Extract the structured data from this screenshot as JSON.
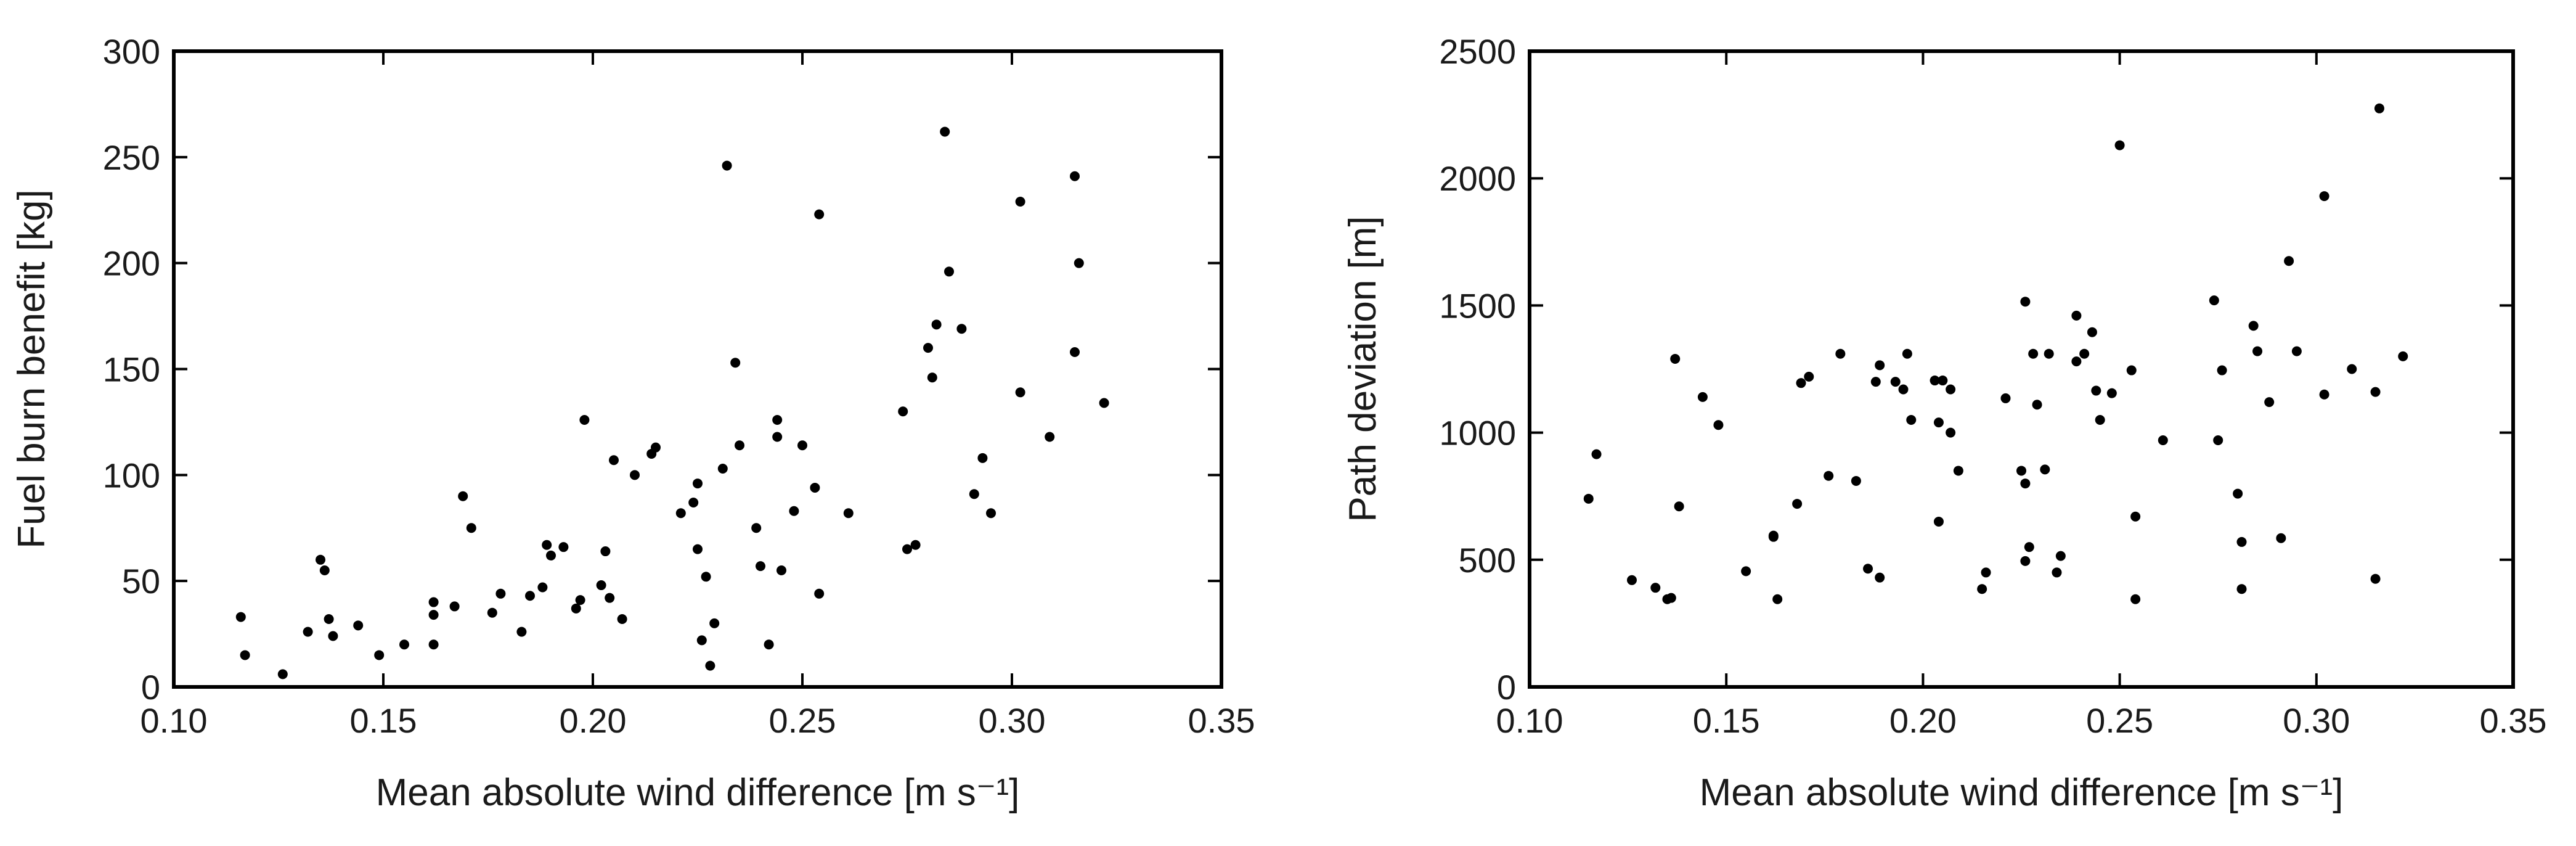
{
  "chart_data": [
    {
      "type": "scatter",
      "xlabel": "Mean absolute wind difference [m s⁻¹]",
      "ylabel": "Fuel burn benefit [kg]",
      "xlim": [
        0.1,
        0.35
      ],
      "ylim": [
        0,
        300
      ],
      "x_ticks": [
        "0.10",
        "0.15",
        "0.20",
        "0.25",
        "0.30",
        "0.35"
      ],
      "y_ticks": [
        "0",
        "50",
        "100",
        "150",
        "200",
        "250",
        "300"
      ],
      "grid": false,
      "marker_color": "#000000",
      "points": [
        [
          0.116,
          33
        ],
        [
          0.117,
          15
        ],
        [
          0.126,
          6
        ],
        [
          0.132,
          26
        ],
        [
          0.135,
          60
        ],
        [
          0.136,
          55
        ],
        [
          0.137,
          32
        ],
        [
          0.138,
          24
        ],
        [
          0.144,
          29
        ],
        [
          0.149,
          15
        ],
        [
          0.155,
          20
        ],
        [
          0.162,
          40
        ],
        [
          0.162,
          34
        ],
        [
          0.162,
          20
        ],
        [
          0.167,
          38
        ],
        [
          0.169,
          90
        ],
        [
          0.171,
          75
        ],
        [
          0.176,
          35
        ],
        [
          0.178,
          44
        ],
        [
          0.183,
          26
        ],
        [
          0.185,
          43
        ],
        [
          0.188,
          47
        ],
        [
          0.189,
          67
        ],
        [
          0.19,
          62
        ],
        [
          0.193,
          66
        ],
        [
          0.196,
          37
        ],
        [
          0.197,
          41
        ],
        [
          0.198,
          126
        ],
        [
          0.202,
          48
        ],
        [
          0.203,
          64
        ],
        [
          0.204,
          42
        ],
        [
          0.205,
          107
        ],
        [
          0.207,
          32
        ],
        [
          0.21,
          100
        ],
        [
          0.214,
          110
        ],
        [
          0.215,
          113
        ],
        [
          0.221,
          82
        ],
        [
          0.224,
          87
        ],
        [
          0.225,
          65
        ],
        [
          0.225,
          96
        ],
        [
          0.226,
          22
        ],
        [
          0.227,
          52
        ],
        [
          0.228,
          10
        ],
        [
          0.229,
          30
        ],
        [
          0.231,
          103
        ],
        [
          0.232,
          246
        ],
        [
          0.234,
          153
        ],
        [
          0.235,
          114
        ],
        [
          0.239,
          75
        ],
        [
          0.24,
          57
        ],
        [
          0.242,
          20
        ],
        [
          0.244,
          126
        ],
        [
          0.244,
          118
        ],
        [
          0.245,
          55
        ],
        [
          0.248,
          83
        ],
        [
          0.25,
          114
        ],
        [
          0.253,
          94
        ],
        [
          0.254,
          223
        ],
        [
          0.254,
          44
        ],
        [
          0.261,
          82
        ],
        [
          0.274,
          130
        ],
        [
          0.275,
          65
        ],
        [
          0.277,
          67
        ],
        [
          0.28,
          160
        ],
        [
          0.281,
          146
        ],
        [
          0.282,
          171
        ],
        [
          0.284,
          262
        ],
        [
          0.285,
          196
        ],
        [
          0.288,
          169
        ],
        [
          0.291,
          91
        ],
        [
          0.293,
          108
        ],
        [
          0.295,
          82
        ],
        [
          0.302,
          139
        ],
        [
          0.302,
          229
        ],
        [
          0.309,
          118
        ],
        [
          0.315,
          158
        ],
        [
          0.315,
          241
        ],
        [
          0.316,
          200
        ],
        [
          0.322,
          134
        ]
      ]
    },
    {
      "type": "scatter",
      "xlabel": "Mean absolute wind difference [m s⁻¹]",
      "ylabel": "Path deviation [m]",
      "xlim": [
        0.1,
        0.35
      ],
      "ylim": [
        0,
        2500
      ],
      "x_ticks": [
        "0.10",
        "0.15",
        "0.20",
        "0.25",
        "0.30",
        "0.35"
      ],
      "y_ticks": [
        "0",
        "500",
        "1000",
        "1500",
        "2000",
        "2500"
      ],
      "grid": false,
      "marker_color": "#000000",
      "points": [
        [
          0.115,
          740
        ],
        [
          0.117,
          915
        ],
        [
          0.126,
          420
        ],
        [
          0.132,
          390
        ],
        [
          0.135,
          345
        ],
        [
          0.136,
          350
        ],
        [
          0.137,
          1290
        ],
        [
          0.138,
          710
        ],
        [
          0.144,
          1140
        ],
        [
          0.148,
          1030
        ],
        [
          0.155,
          455
        ],
        [
          0.162,
          595
        ],
        [
          0.162,
          590
        ],
        [
          0.163,
          345
        ],
        [
          0.168,
          720
        ],
        [
          0.169,
          1195
        ],
        [
          0.171,
          1220
        ],
        [
          0.176,
          830
        ],
        [
          0.179,
          1310
        ],
        [
          0.183,
          810
        ],
        [
          0.186,
          465
        ],
        [
          0.188,
          1200
        ],
        [
          0.189,
          1265
        ],
        [
          0.189,
          430
        ],
        [
          0.193,
          1200
        ],
        [
          0.195,
          1170
        ],
        [
          0.196,
          1310
        ],
        [
          0.197,
          1050
        ],
        [
          0.203,
          1205
        ],
        [
          0.204,
          1040
        ],
        [
          0.205,
          1205
        ],
        [
          0.204,
          650
        ],
        [
          0.207,
          1170
        ],
        [
          0.207,
          1000
        ],
        [
          0.209,
          850
        ],
        [
          0.215,
          385
        ],
        [
          0.216,
          450
        ],
        [
          0.221,
          1135
        ],
        [
          0.225,
          850
        ],
        [
          0.226,
          1515
        ],
        [
          0.226,
          495
        ],
        [
          0.226,
          800
        ],
        [
          0.227,
          550
        ],
        [
          0.228,
          1310
        ],
        [
          0.229,
          1110
        ],
        [
          0.231,
          855
        ],
        [
          0.232,
          1310
        ],
        [
          0.234,
          450
        ],
        [
          0.235,
          515
        ],
        [
          0.239,
          1460
        ],
        [
          0.239,
          1280
        ],
        [
          0.241,
          1310
        ],
        [
          0.243,
          1395
        ],
        [
          0.244,
          1165
        ],
        [
          0.245,
          1050
        ],
        [
          0.248,
          1155
        ],
        [
          0.25,
          2130
        ],
        [
          0.253,
          1245
        ],
        [
          0.254,
          670
        ],
        [
          0.254,
          345
        ],
        [
          0.261,
          970
        ],
        [
          0.274,
          1520
        ],
        [
          0.275,
          970
        ],
        [
          0.276,
          1245
        ],
        [
          0.28,
          760
        ],
        [
          0.281,
          570
        ],
        [
          0.281,
          385
        ],
        [
          0.284,
          1420
        ],
        [
          0.285,
          1320
        ],
        [
          0.288,
          1120
        ],
        [
          0.291,
          585
        ],
        [
          0.293,
          1675
        ],
        [
          0.295,
          1320
        ],
        [
          0.302,
          1930
        ],
        [
          0.302,
          1150
        ],
        [
          0.309,
          1250
        ],
        [
          0.315,
          1160
        ],
        [
          0.315,
          425
        ],
        [
          0.316,
          2275
        ],
        [
          0.322,
          1300
        ]
      ]
    }
  ]
}
